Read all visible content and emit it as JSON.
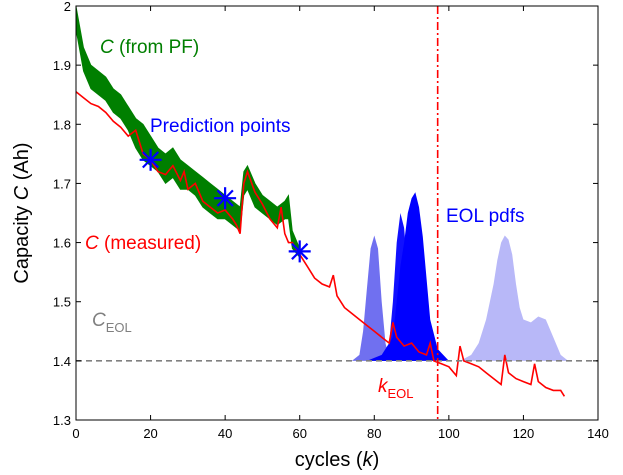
{
  "chart_data": {
    "type": "line",
    "xlabel": {
      "text": "cycles (",
      "italic": "k",
      "suffix": ")"
    },
    "ylabel": {
      "text": "Capacity ",
      "italic": "C",
      "suffix": " (Ah)"
    },
    "xlim": [
      0,
      140
    ],
    "ylim": [
      1.3,
      2.0
    ],
    "xticks": [
      "0",
      "20",
      "40",
      "60",
      "80",
      "100",
      "120",
      "140"
    ],
    "yticks": [
      "1.3",
      "1.4",
      "1.5",
      "1.6",
      "1.7",
      "1.8",
      "1.9",
      "2"
    ],
    "grid": false,
    "colors": {
      "measured": "#ff0000",
      "pf_band": "#007f00",
      "prediction_points": "#0000ff",
      "threshold": "#808080",
      "eol_line": "#ff0000",
      "pdf_1": "#7070f0",
      "pdf_2": "#1010ff",
      "pdf_3": "#0000ff",
      "pdf_4": "#b8b8f8"
    },
    "annotations": {
      "pf": {
        "italic": "C",
        "text": " (from PF)"
      },
      "prediction": "Prediction points",
      "measured": {
        "italic": "C",
        "text": " (measured)"
      },
      "eol_pdfs": "EOL pdfs",
      "c_eol": {
        "main": "C",
        "sub": "EOL"
      },
      "k_eol": {
        "main": "k",
        "sub": "EOL"
      }
    },
    "measured": {
      "x": [
        0,
        2,
        4,
        6,
        8,
        10,
        12,
        14,
        16,
        17,
        18,
        20,
        22,
        24,
        26,
        28,
        29,
        30,
        32,
        34,
        36,
        38,
        40,
        42,
        43,
        44,
        45,
        46,
        48,
        50,
        52,
        54,
        55,
        56,
        57,
        58,
        60,
        62,
        64,
        66,
        68,
        69,
        70,
        72,
        74,
        76,
        78,
        80,
        82,
        84,
        85,
        86,
        88,
        90,
        92,
        94,
        95,
        96,
        98,
        100,
        102,
        103,
        104,
        106,
        108,
        110,
        112,
        114,
        115,
        116,
        118,
        120,
        122,
        123,
        124,
        126,
        128,
        130,
        131
      ],
      "y": [
        1.855,
        1.845,
        1.835,
        1.83,
        1.82,
        1.805,
        1.795,
        1.78,
        1.79,
        1.77,
        1.75,
        1.74,
        1.72,
        1.715,
        1.73,
        1.705,
        1.72,
        1.69,
        1.7,
        1.67,
        1.66,
        1.65,
        1.655,
        1.64,
        1.63,
        1.615,
        1.7,
        1.72,
        1.685,
        1.665,
        1.64,
        1.625,
        1.66,
        1.615,
        1.6,
        1.6,
        1.58,
        1.56,
        1.54,
        1.53,
        1.525,
        1.545,
        1.51,
        1.49,
        1.48,
        1.47,
        1.46,
        1.45,
        1.44,
        1.43,
        1.465,
        1.44,
        1.425,
        1.43,
        1.415,
        1.41,
        1.43,
        1.4,
        1.395,
        1.39,
        1.375,
        1.425,
        1.4,
        1.395,
        1.39,
        1.38,
        1.37,
        1.36,
        1.41,
        1.38,
        1.37,
        1.365,
        1.36,
        1.395,
        1.365,
        1.355,
        1.35,
        1.35,
        1.34
      ]
    },
    "pf_band": {
      "x": [
        0,
        2,
        4,
        6,
        8,
        10,
        12,
        14,
        16,
        18,
        20,
        22,
        24,
        26,
        28,
        30,
        32,
        34,
        36,
        38,
        40,
        42,
        44,
        45,
        46,
        48,
        50,
        52,
        54,
        56,
        57,
        58,
        60
      ],
      "upper": [
        2.0,
        1.93,
        1.9,
        1.89,
        1.88,
        1.86,
        1.85,
        1.83,
        1.81,
        1.8,
        1.78,
        1.76,
        1.75,
        1.76,
        1.74,
        1.73,
        1.72,
        1.71,
        1.7,
        1.69,
        1.68,
        1.67,
        1.66,
        1.72,
        1.73,
        1.7,
        1.68,
        1.67,
        1.66,
        1.67,
        1.68,
        1.62,
        1.59
      ],
      "lower": [
        1.96,
        1.89,
        1.86,
        1.85,
        1.84,
        1.82,
        1.81,
        1.79,
        1.76,
        1.74,
        1.73,
        1.72,
        1.7,
        1.71,
        1.69,
        1.69,
        1.68,
        1.66,
        1.65,
        1.64,
        1.64,
        1.63,
        1.62,
        1.68,
        1.69,
        1.66,
        1.65,
        1.64,
        1.63,
        1.64,
        1.64,
        1.59,
        1.575
      ]
    },
    "prediction_points": {
      "x": [
        20,
        40,
        60
      ],
      "y": [
        1.74,
        1.675,
        1.585
      ]
    },
    "threshold": 1.4,
    "eol_cycle": 97,
    "eol_pdfs": [
      {
        "x": [
          74,
          76,
          77,
          78,
          79,
          80,
          81,
          82,
          83,
          84,
          86
        ],
        "y": [
          1.4,
          1.41,
          1.45,
          1.52,
          1.59,
          1.612,
          1.59,
          1.5,
          1.43,
          1.405,
          1.4
        ]
      },
      {
        "x": [
          82,
          84,
          85,
          86,
          87,
          88,
          89,
          90,
          92
        ],
        "y": [
          1.4,
          1.43,
          1.5,
          1.6,
          1.65,
          1.625,
          1.55,
          1.44,
          1.4
        ]
      },
      {
        "x": [
          78,
          82,
          85,
          86,
          87,
          88,
          89,
          90,
          91,
          92,
          93,
          94,
          95,
          97,
          100
        ],
        "y": [
          1.4,
          1.41,
          1.44,
          1.5,
          1.56,
          1.6,
          1.65,
          1.675,
          1.685,
          1.66,
          1.61,
          1.54,
          1.47,
          1.42,
          1.4
        ]
      },
      {
        "x": [
          103,
          106,
          108,
          110,
          112,
          113,
          114,
          115,
          116,
          117,
          118,
          119,
          120,
          122,
          124,
          126,
          128,
          130,
          132
        ],
        "y": [
          1.4,
          1.41,
          1.43,
          1.47,
          1.53,
          1.57,
          1.6,
          1.612,
          1.605,
          1.58,
          1.53,
          1.49,
          1.47,
          1.465,
          1.475,
          1.47,
          1.44,
          1.41,
          1.4
        ]
      }
    ]
  }
}
